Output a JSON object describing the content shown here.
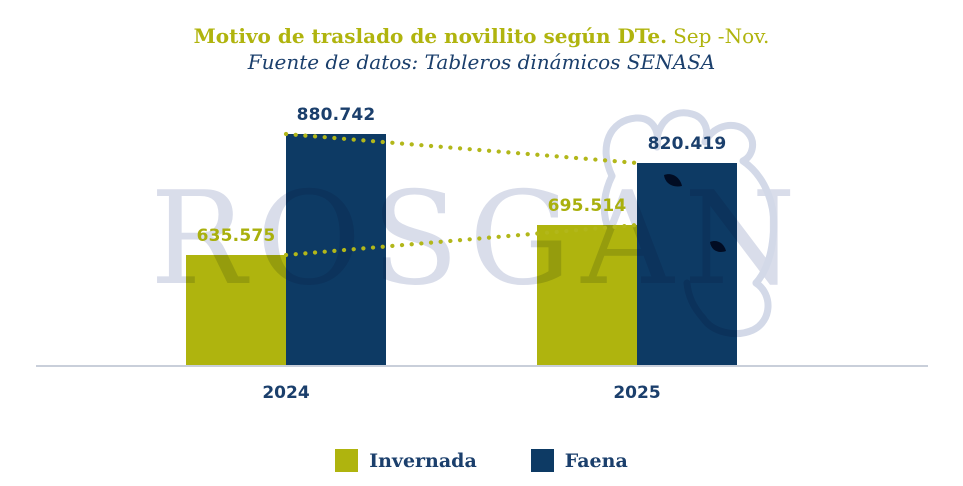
{
  "title": {
    "main": "Motivo de traslado de novillito según DTe.",
    "period": "Sep -Nov."
  },
  "subtitle": "Fuente de datos: Tableros dinámicos SENASA",
  "watermark": {
    "text": "ROSGAN",
    "icon": "cow-head-outline"
  },
  "x_axis": {
    "categories": [
      "2024",
      "2025"
    ]
  },
  "legend": {
    "items": [
      {
        "label": "Invernada",
        "color": "#afb40e"
      },
      {
        "label": "Faena",
        "color": "#0d3a64"
      }
    ]
  },
  "colors": {
    "olive": "#b0b40e",
    "navy": "#0d3a64",
    "navy_text": "#1b3f6c",
    "axis_line": "#c9cfda",
    "watermark_blue": "#d9ddea",
    "cow_outline": "#d3d9e8",
    "cow_features": "#0e3258",
    "trend_dots": "#b2b71a"
  },
  "chart_data": {
    "type": "bar",
    "title": "Motivo de traslado de novillito según DTe. Sep -Nov.",
    "source": "Fuente de datos: Tableros dinámicos SENASA",
    "categories": [
      "2024",
      "2025"
    ],
    "series": [
      {
        "name": "Invernada",
        "color": "#afb40e",
        "label_color": "#a9b00d",
        "values": [
          635575,
          695514
        ],
        "labels": [
          "635.575",
          "695.514"
        ]
      },
      {
        "name": "Faena",
        "color": "#0d3a64",
        "label_color": "#1b3f6c",
        "values": [
          880742,
          820419
        ],
        "labels": [
          "880.742",
          "820.419"
        ]
      }
    ],
    "ylim": [
      410000,
      900000
    ],
    "grid": false,
    "legend_position": "bottom",
    "annotations": "dotted olive trend connectors between bar tops of the same series"
  }
}
